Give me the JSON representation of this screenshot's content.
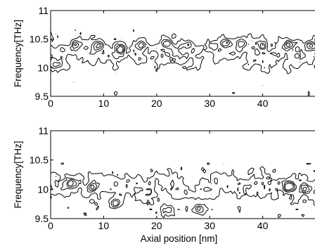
{
  "chart_data": [
    {
      "type": "contour",
      "xlabel": "",
      "ylabel": "Frequency[THz]",
      "xlim": [
        0,
        50
      ],
      "ylim": [
        9.5,
        11
      ],
      "xticks": [
        0,
        10,
        20,
        30,
        40
      ],
      "xtick_labels": [
        "0",
        "10",
        "20",
        "30",
        "40"
      ],
      "yticks": [
        9.5,
        10,
        10.5,
        11
      ],
      "ytick_labels": [
        "9.5",
        "10",
        "10.5",
        "11"
      ],
      "grid": false,
      "band_center_thz": 10.25,
      "band_halfwidth_thz": 0.35,
      "hotspots": [
        {
          "x": 1.0,
          "y": 10.05
        },
        {
          "x": 5.0,
          "y": 10.42
        },
        {
          "x": 9.0,
          "y": 10.4
        },
        {
          "x": 13.0,
          "y": 10.33
        },
        {
          "x": 17.0,
          "y": 10.4
        },
        {
          "x": 22.0,
          "y": 10.42
        },
        {
          "x": 26.0,
          "y": 10.4
        },
        {
          "x": 33.0,
          "y": 10.42
        },
        {
          "x": 36.0,
          "y": 10.42
        },
        {
          "x": 40.0,
          "y": 10.42
        },
        {
          "x": 45.0,
          "y": 10.4
        },
        {
          "x": 49.0,
          "y": 10.4
        }
      ]
    },
    {
      "type": "contour",
      "xlabel": "Axial position [nm]",
      "ylabel": "Frequency[THz]",
      "xlim": [
        0,
        50
      ],
      "ylim": [
        9.5,
        11
      ],
      "xticks": [
        0,
        10,
        20,
        30,
        40
      ],
      "xtick_labels": [
        "0",
        "10",
        "20",
        "30",
        "40"
      ],
      "yticks": [
        9.5,
        10,
        10.5,
        11
      ],
      "ytick_labels": [
        "9.5",
        "10",
        "10.5",
        "11"
      ],
      "grid": false,
      "band_center_thz": 10.05,
      "band_halfwidth_thz": 0.35,
      "hotspots": [
        {
          "x": 4.0,
          "y": 10.1
        },
        {
          "x": 8.0,
          "y": 10.05
        },
        {
          "x": 12.0,
          "y": 9.75
        },
        {
          "x": 22.0,
          "y": 9.65
        },
        {
          "x": 28.0,
          "y": 9.65
        },
        {
          "x": 45.0,
          "y": 10.05
        },
        {
          "x": 48.0,
          "y": 10.0
        }
      ]
    }
  ]
}
